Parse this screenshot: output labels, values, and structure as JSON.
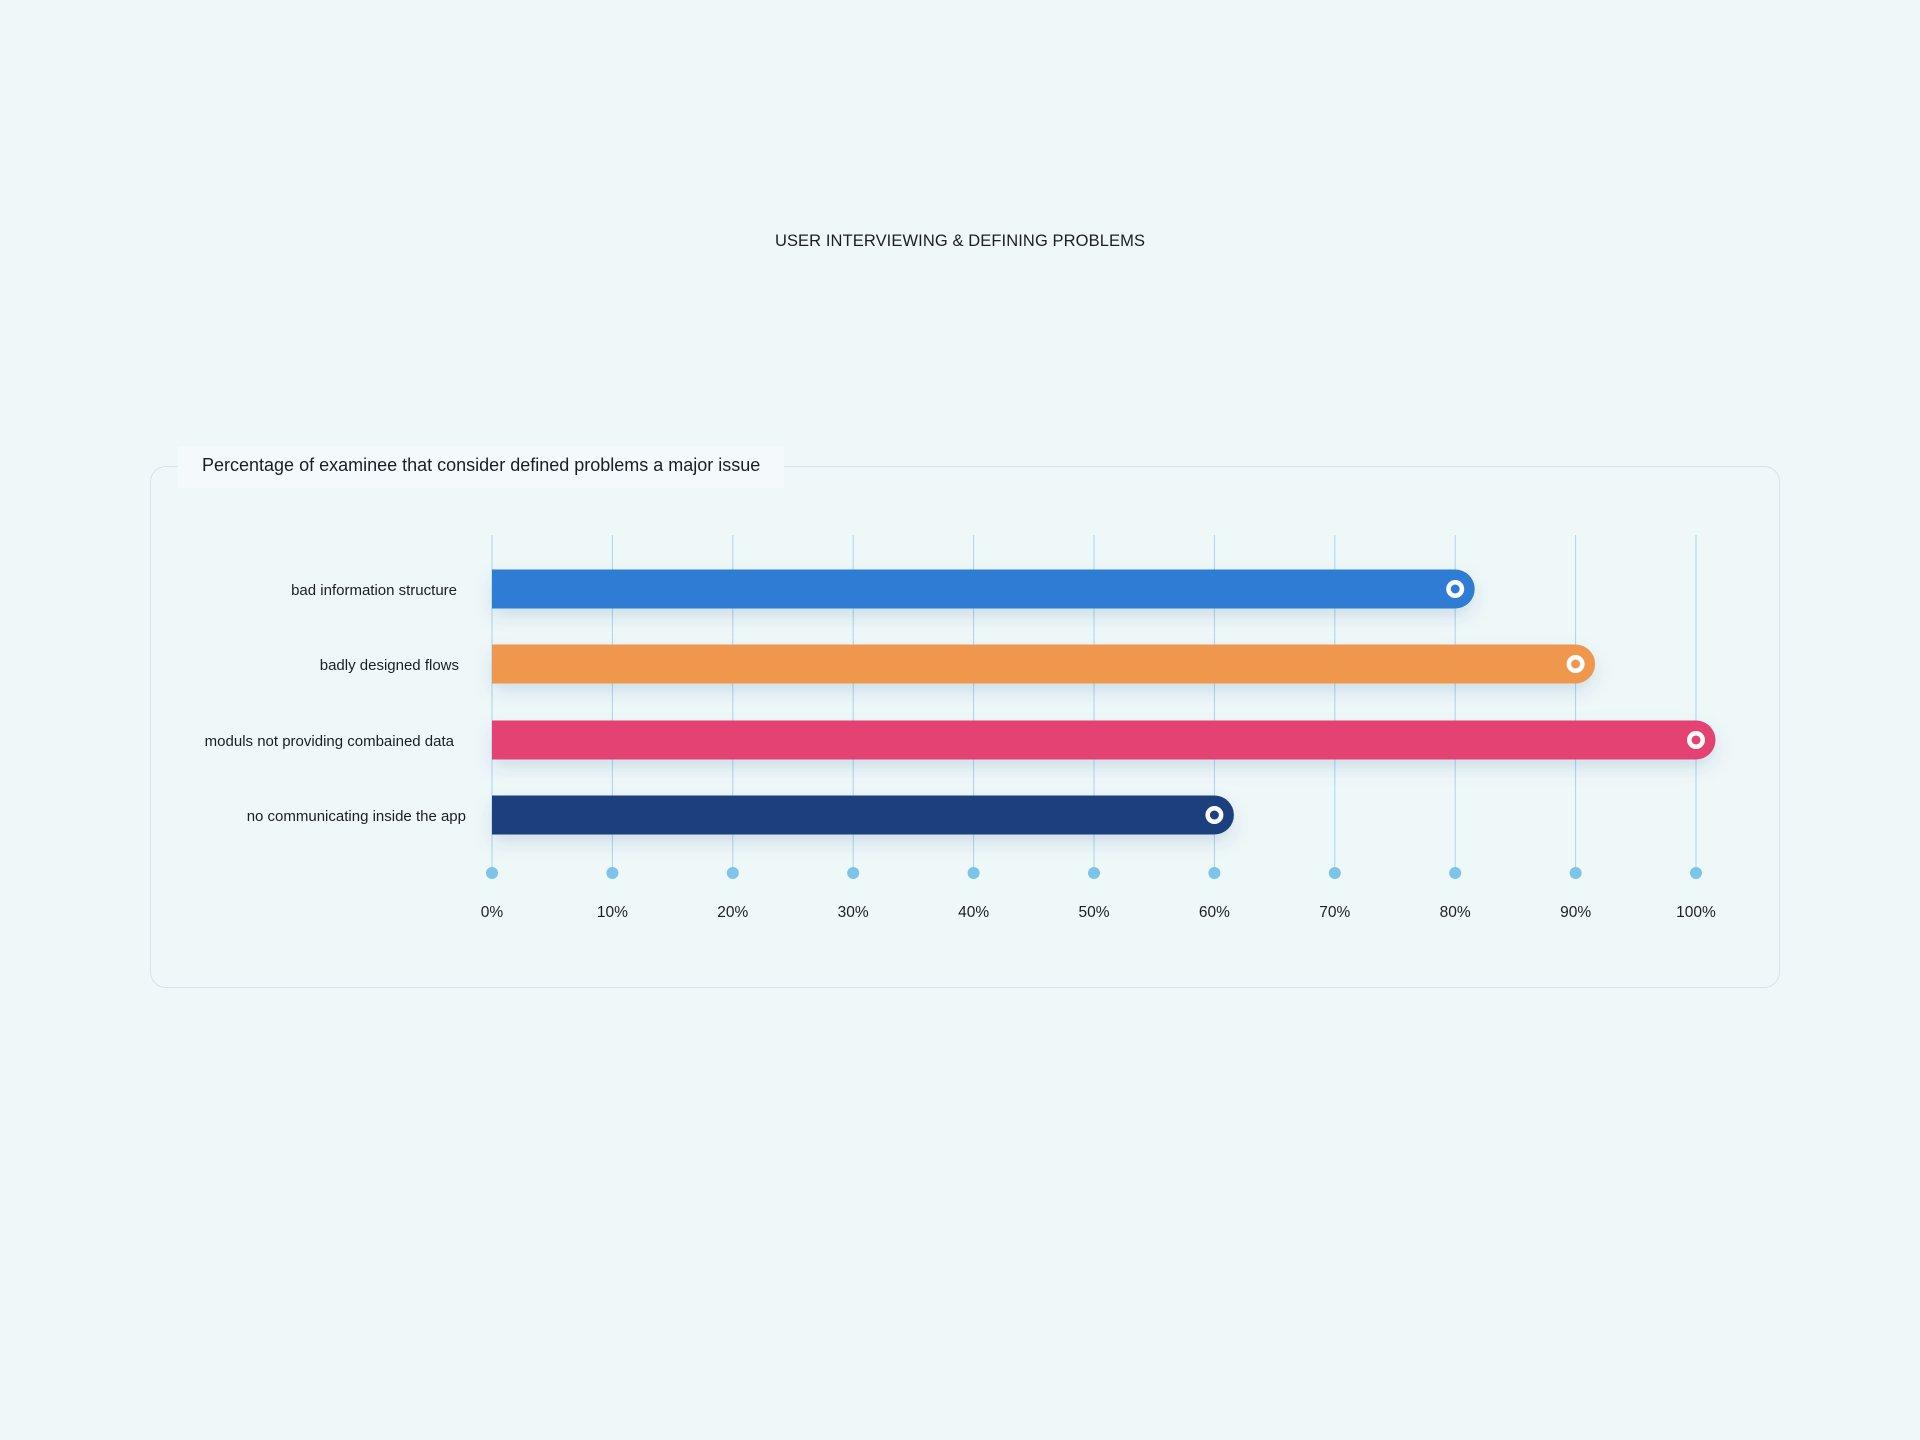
{
  "page": {
    "title": "USER INTERVIEWING & DEFINING PROBLEMS"
  },
  "chart_data": {
    "type": "bar",
    "orientation": "horizontal",
    "title": "Percentage of examinee that consider defined problems a major issue",
    "categories": [
      "bad information structure",
      "badly designed flows",
      "moduls not providing combained data",
      "no communicating inside the app"
    ],
    "values": [
      80,
      90,
      100,
      60
    ],
    "colors": [
      "#2d7bd4",
      "#ee974d",
      "#e34272",
      "#1f3f7e"
    ],
    "xlim": [
      0,
      100
    ],
    "x_ticks": [
      "0%",
      "10%",
      "20%",
      "30%",
      "40%",
      "50%",
      "60%",
      "70%",
      "80%",
      "90%",
      "100%"
    ],
    "grid": true,
    "legend": "none",
    "gridline_color": "#a9d6ec",
    "tick_dot_color": "#7cc4e8"
  }
}
